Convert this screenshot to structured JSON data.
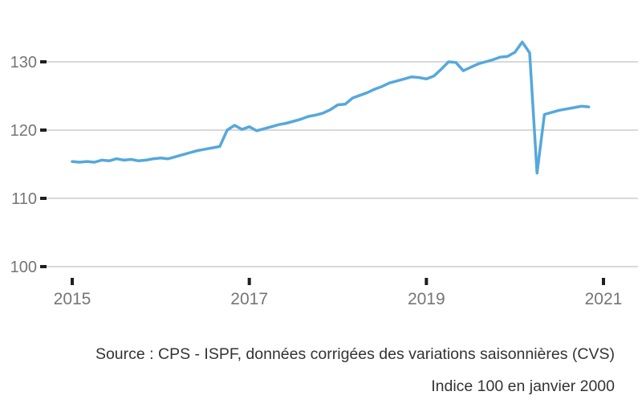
{
  "chart_data": {
    "type": "line",
    "title": "",
    "xlabel": "",
    "ylabel": "",
    "frequency": "monthly",
    "x_start": "2015-01",
    "x_end": "2020-11",
    "values": [
      115.4,
      115.3,
      115.4,
      115.3,
      115.6,
      115.5,
      115.8,
      115.6,
      115.7,
      115.5,
      115.6,
      115.8,
      115.9,
      115.8,
      116.1,
      116.4,
      116.7,
      117.0,
      117.2,
      117.4,
      117.6,
      120.0,
      120.7,
      120.1,
      120.5,
      119.9,
      120.2,
      120.5,
      120.8,
      121.0,
      121.3,
      121.6,
      122.0,
      122.2,
      122.5,
      123.0,
      123.7,
      123.8,
      124.7,
      125.1,
      125.5,
      126.0,
      126.4,
      126.9,
      127.2,
      127.5,
      127.8,
      127.7,
      127.5,
      127.9,
      128.9,
      130.0,
      129.9,
      128.7,
      129.2,
      129.7,
      130.0,
      130.3,
      130.7,
      130.8,
      131.4,
      132.9,
      131.3,
      113.7,
      122.3,
      122.6,
      122.9,
      123.1,
      123.3,
      123.5,
      123.4
    ],
    "y_ticks": [
      100,
      110,
      120,
      130
    ],
    "x_tick_years": [
      2015,
      2017,
      2019,
      2021
    ],
    "x_tick_labels": [
      "2015",
      "2017",
      "2019",
      "2021"
    ],
    "y_tick_labels": [
      "100",
      "110",
      "120",
      "130"
    ],
    "ylim": [
      98,
      134
    ],
    "grid": "horizontal gridlines only",
    "legend": "none",
    "line_color": "#55a8dc",
    "grid_color": "#d9d9d9",
    "tick_color": "#1f1f1f",
    "axis_label_color": "#757575"
  },
  "captions": {
    "source": "Source : CPS - ISPF, données corrigées des variations saisonnières (CVS)",
    "base": "Indice 100 en janvier 2000"
  }
}
